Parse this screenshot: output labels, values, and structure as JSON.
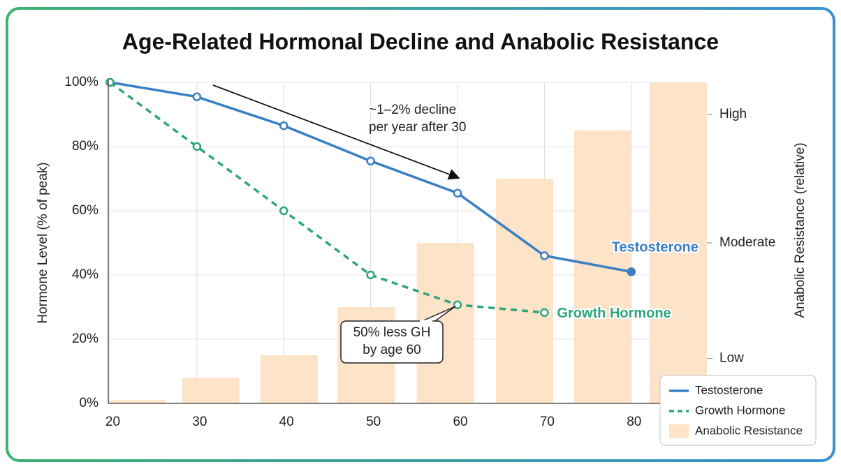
{
  "chart_data": {
    "type": "line",
    "title": "Age-Related Hormonal Decline and Anabolic Resistance",
    "ylabel": "Hormone Level (% of peak)",
    "y2label": "Anabolic Resistance (relative)",
    "xlim": [
      19.8,
      88.7
    ],
    "xticks": [
      20,
      30,
      40,
      50,
      60,
      70,
      80
    ],
    "ylim": [
      0,
      100
    ],
    "yticks": [
      {
        "value": 0,
        "label": "0%"
      },
      {
        "value": 20,
        "label": "20%"
      },
      {
        "value": 40,
        "label": "40%"
      },
      {
        "value": 60,
        "label": "60%"
      },
      {
        "value": 80,
        "label": "80%"
      },
      {
        "value": 100,
        "label": "100%"
      }
    ],
    "y2lim": [
      0,
      100
    ],
    "y2ticks": [
      {
        "value": 14,
        "label": "Low"
      },
      {
        "value": 50,
        "label": "Moderate"
      },
      {
        "value": 90,
        "label": "High"
      }
    ],
    "grid": true,
    "legend": "lower right",
    "series": [
      {
        "name": "Testosterone",
        "type": "line",
        "color": "#3a7fc1",
        "x": [
          20,
          30,
          40,
          50,
          60,
          70,
          80
        ],
        "values": [
          100,
          95.5,
          86.5,
          75.5,
          65.5,
          46,
          41
        ]
      },
      {
        "name": "Growth Hormone",
        "type": "dashed",
        "color": "#2ea57e",
        "x": [
          20,
          30,
          40,
          50,
          60,
          70
        ],
        "values": [
          100,
          80,
          60,
          40,
          30.7,
          28.3
        ]
      },
      {
        "name": "Anabolic Resistance",
        "type": "bar",
        "axis": "y2",
        "color": "#fde3c8",
        "x": [
          23.1,
          31.6,
          40.6,
          49.5,
          58.6,
          67.7,
          76.7,
          85.4
        ],
        "values": [
          1,
          8,
          15,
          30,
          50,
          70,
          85,
          100
        ]
      }
    ],
    "annotations": [
      {
        "text": [
          "~1–2% decline",
          "per year after 30"
        ]
      },
      {
        "text": [
          "50% less GH",
          "by age 60"
        ]
      }
    ]
  }
}
